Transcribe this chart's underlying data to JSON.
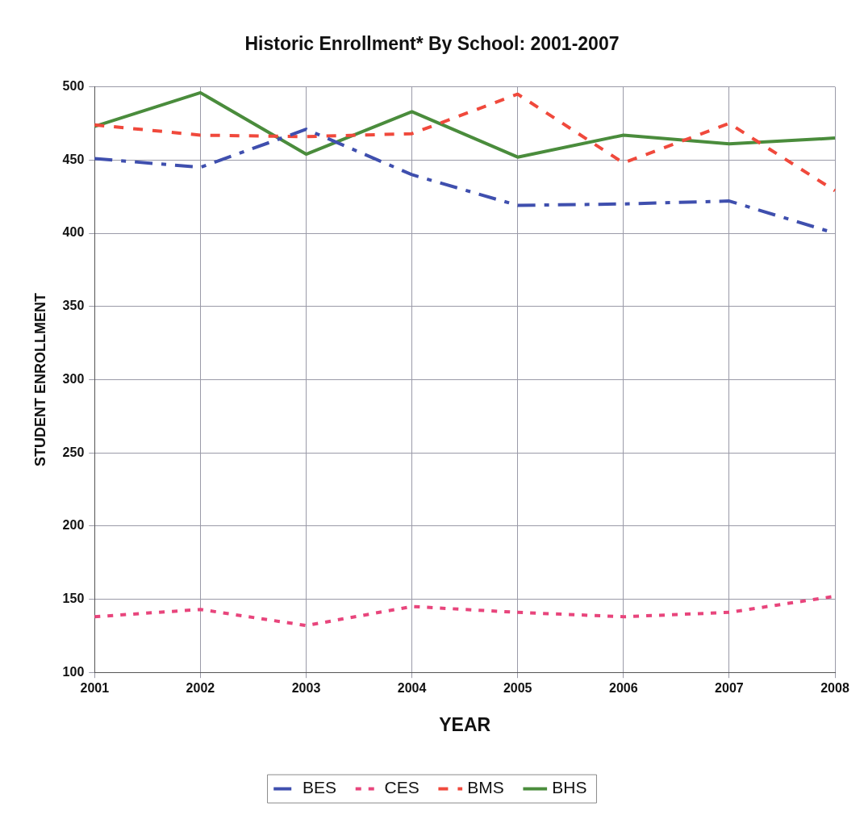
{
  "chart_data": {
    "type": "line",
    "title": "Historic Enrollment* By School: 2001-2007",
    "xlabel": "YEAR",
    "ylabel": "STUDENT ENROLLMENT",
    "categories": [
      "2001",
      "2002",
      "2003",
      "2004",
      "2005",
      "2006",
      "2007",
      "2008"
    ],
    "series": [
      {
        "name": "BES",
        "color": "#3f4fae",
        "line_style": "dashdot",
        "values": [
          451,
          445,
          471,
          440,
          419,
          420,
          422,
          400
        ]
      },
      {
        "name": "CES",
        "color": "#e8457c",
        "line_style": "dotted",
        "values": [
          138,
          143,
          132,
          145,
          141,
          138,
          141,
          152
        ]
      },
      {
        "name": "BMS",
        "color": "#f0493c",
        "line_style": "dashed",
        "values": [
          474,
          467,
          466,
          468,
          495,
          448,
          475,
          429
        ]
      },
      {
        "name": "BHS",
        "color": "#4a8c3c",
        "line_style": "solid",
        "values": [
          473,
          496,
          454,
          483,
          452,
          467,
          461,
          465
        ]
      }
    ],
    "ylim": [
      100,
      500
    ],
    "yticks": [
      100,
      150,
      200,
      250,
      300,
      350,
      400,
      450,
      500
    ],
    "grid": true,
    "legend": "bottom",
    "marker": "none"
  }
}
